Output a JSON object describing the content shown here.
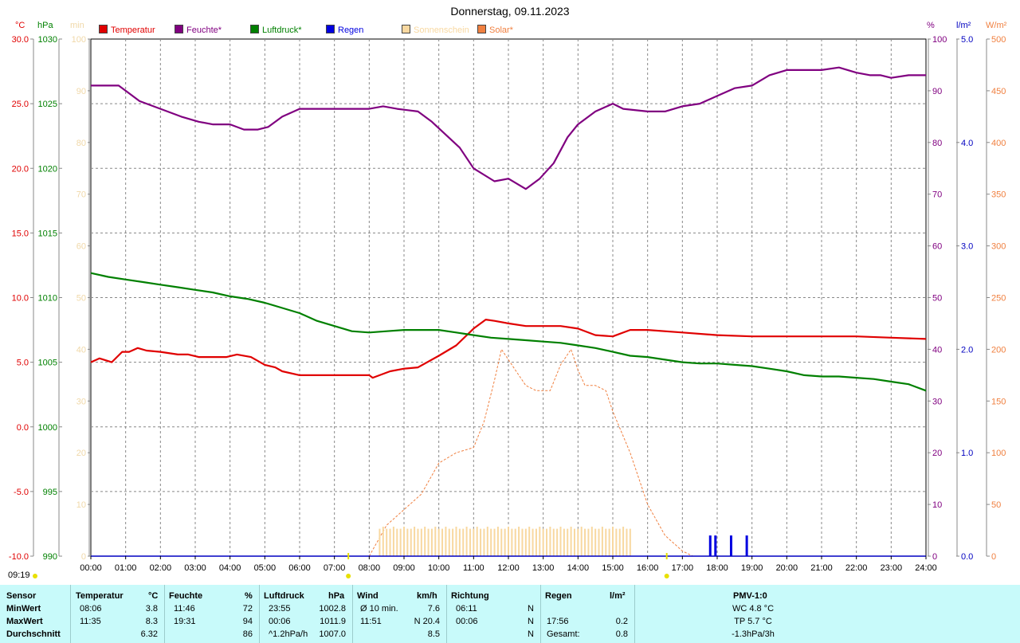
{
  "title": "Donnerstag, 09.11.2023",
  "time_stamp": "09:19",
  "axis_units": {
    "temp": "°C",
    "press": "hPa",
    "sun": "min",
    "hum": "%",
    "rain": "l/m²",
    "solar": "W/m²"
  },
  "legend": [
    {
      "label": "Temperatur",
      "color": "#e00000"
    },
    {
      "label": "Feuchte*",
      "color": "#800080"
    },
    {
      "label": "Luftdruck*",
      "color": "#008000"
    },
    {
      "label": "Regen",
      "color": "#0000e0"
    },
    {
      "label": "Sonnenschein",
      "color": "#f8d8a0"
    },
    {
      "label": "Solar*",
      "color": "#f08040"
    }
  ],
  "chart_data": {
    "type": "line",
    "title": "Donnerstag, 09.11.2023",
    "x_ticks": [
      "00:00",
      "01:00",
      "02:00",
      "03:00",
      "04:00",
      "05:00",
      "06:00",
      "07:00",
      "08:00",
      "09:00",
      "10:00",
      "11:00",
      "12:00",
      "13:00",
      "14:00",
      "15:00",
      "16:00",
      "17:00",
      "18:00",
      "19:00",
      "20:00",
      "21:00",
      "22:00",
      "23:00",
      "24:00"
    ],
    "xlim": [
      0,
      24
    ],
    "axes": {
      "temp": {
        "ylim": [
          -10,
          30
        ],
        "ticks": [
          "-10.0",
          "-5.0",
          "0.0",
          "5.0",
          "10.0",
          "15.0",
          "20.0",
          "25.0",
          "30.0"
        ],
        "color": "#e00000"
      },
      "press": {
        "ylim": [
          990,
          1030
        ],
        "ticks": [
          "990",
          "995",
          "1000",
          "1005",
          "1010",
          "1015",
          "1020",
          "1025",
          "1030"
        ],
        "color": "#008000"
      },
      "sun": {
        "ylim": [
          0,
          100
        ],
        "ticks": [
          "0",
          "10",
          "20",
          "30",
          "40",
          "50",
          "60",
          "70",
          "80",
          "90",
          "100"
        ],
        "color": "#f0d8a8"
      },
      "hum": {
        "ylim": [
          0,
          100
        ],
        "ticks": [
          "0",
          "10",
          "20",
          "30",
          "40",
          "50",
          "60",
          "70",
          "80",
          "90",
          "100"
        ],
        "color": "#800080"
      },
      "rain": {
        "ylim": [
          0,
          5
        ],
        "ticks": [
          "0.0",
          "1.0",
          "2.0",
          "3.0",
          "4.0",
          "5.0"
        ],
        "color": "#0000c0"
      },
      "solar": {
        "ylim": [
          0,
          500
        ],
        "ticks": [
          "0",
          "50",
          "100",
          "150",
          "200",
          "250",
          "300",
          "350",
          "400",
          "450",
          "500"
        ],
        "color": "#f08040"
      }
    },
    "grid": true,
    "series": [
      {
        "name": "Temperatur",
        "axis": "temp",
        "color": "#e00000",
        "x": [
          0,
          0.25,
          0.6,
          0.9,
          1.1,
          1.35,
          1.6,
          2.0,
          2.5,
          2.8,
          3.1,
          3.6,
          3.9,
          4.2,
          4.6,
          5.0,
          5.3,
          5.5,
          6.0,
          7.0,
          8.0,
          8.1,
          8.6,
          9.0,
          9.4,
          10.0,
          10.5,
          11.0,
          11.35,
          11.6,
          12.0,
          12.5,
          13.5,
          14.0,
          14.5,
          15.0,
          15.5,
          16.0,
          17.0,
          18.0,
          19.0,
          20.0,
          20.5,
          21.0,
          21.5,
          22.0,
          23.0,
          24.0
        ],
        "y": [
          5.0,
          5.3,
          5.0,
          5.8,
          5.8,
          6.1,
          5.9,
          5.8,
          5.6,
          5.6,
          5.4,
          5.4,
          5.4,
          5.6,
          5.4,
          4.8,
          4.6,
          4.3,
          4.0,
          4.0,
          4.0,
          3.8,
          4.3,
          4.5,
          4.6,
          5.5,
          6.3,
          7.6,
          8.3,
          8.2,
          8.0,
          7.8,
          7.8,
          7.6,
          7.1,
          7.0,
          7.5,
          7.5,
          7.3,
          7.1,
          7.0,
          7.0,
          7.0,
          7.0,
          7.0,
          7.0,
          6.9,
          6.8
        ]
      },
      {
        "name": "Feuchte*",
        "axis": "hum",
        "color": "#800080",
        "x": [
          0,
          0.8,
          1.0,
          1.4,
          1.8,
          2.2,
          2.6,
          3.1,
          3.5,
          4.0,
          4.4,
          4.8,
          5.1,
          5.5,
          6.0,
          7.0,
          8.0,
          8.4,
          8.8,
          9.4,
          9.8,
          10.2,
          10.6,
          11.0,
          11.6,
          12.0,
          12.5,
          12.9,
          13.3,
          13.7,
          14.0,
          14.5,
          15.0,
          15.3,
          16.0,
          16.5,
          17.0,
          17.5,
          18.0,
          18.5,
          19.0,
          19.5,
          20.0,
          21.0,
          21.5,
          22.0,
          22.4,
          22.7,
          23.0,
          23.5,
          24.0
        ],
        "y": [
          91,
          91,
          90,
          88,
          87,
          86,
          85,
          84,
          83.5,
          83.5,
          82.5,
          82.5,
          83,
          85,
          86.5,
          86.5,
          86.5,
          87,
          86.5,
          86,
          84,
          81.5,
          79,
          75,
          72.5,
          73,
          71,
          73,
          76,
          81,
          83.5,
          86,
          87.5,
          86.5,
          86,
          86,
          87,
          87.5,
          89,
          90.5,
          91,
          93,
          94,
          94,
          94.5,
          93.5,
          93,
          93,
          92.5,
          93,
          93
        ]
      },
      {
        "name": "Luftdruck*",
        "axis": "press",
        "color": "#008000",
        "x": [
          0,
          0.5,
          1.0,
          1.5,
          2.0,
          2.5,
          3.0,
          3.5,
          4.0,
          4.5,
          5.0,
          5.5,
          6.0,
          6.5,
          7.0,
          7.5,
          8.0,
          8.5,
          9.0,
          9.5,
          10.0,
          10.5,
          11.0,
          11.5,
          12.0,
          12.5,
          13.0,
          13.5,
          14.0,
          14.5,
          15.0,
          15.5,
          16.0,
          16.5,
          17.0,
          17.5,
          18.0,
          18.5,
          19.0,
          19.5,
          20.0,
          20.5,
          21.0,
          21.5,
          22.0,
          22.5,
          23.0,
          23.5,
          24.0
        ],
        "y": [
          1011.9,
          1011.6,
          1011.4,
          1011.2,
          1011.0,
          1010.8,
          1010.6,
          1010.4,
          1010.1,
          1009.9,
          1009.6,
          1009.2,
          1008.8,
          1008.2,
          1007.8,
          1007.4,
          1007.3,
          1007.4,
          1007.5,
          1007.5,
          1007.5,
          1007.3,
          1007.1,
          1006.9,
          1006.8,
          1006.7,
          1006.6,
          1006.5,
          1006.3,
          1006.1,
          1005.8,
          1005.5,
          1005.4,
          1005.2,
          1005.0,
          1004.9,
          1004.9,
          1004.8,
          1004.7,
          1004.5,
          1004.3,
          1004.0,
          1003.9,
          1003.9,
          1003.8,
          1003.7,
          1003.5,
          1003.3,
          1002.8
        ]
      },
      {
        "name": "Solar*",
        "axis": "solar",
        "color": "#f08040",
        "dashed": true,
        "x": [
          8.0,
          8.5,
          9.0,
          9.5,
          10.0,
          10.5,
          11.0,
          11.3,
          11.6,
          11.8,
          12.0,
          12.2,
          12.5,
          12.8,
          13.2,
          13.5,
          13.8,
          14.0,
          14.2,
          14.5,
          14.8,
          15.0,
          15.5,
          16.0,
          16.5,
          17.0,
          17.3
        ],
        "y": [
          0,
          30,
          45,
          60,
          90,
          100,
          105,
          130,
          170,
          200,
          190,
          180,
          165,
          160,
          160,
          185,
          200,
          180,
          165,
          165,
          160,
          140,
          100,
          50,
          20,
          5,
          0
        ]
      },
      {
        "name": "Sonnenschein",
        "axis": "sun",
        "color": "#f8d8a0",
        "type": "bar",
        "x_start": 8.3,
        "x_end": 15.5,
        "value": 5.3
      },
      {
        "name": "Regen",
        "axis": "rain",
        "color": "#0000e0",
        "type": "bar",
        "x": [
          17.8,
          17.95,
          18.4,
          18.85
        ],
        "values": [
          0.2,
          0.2,
          0.2,
          0.2
        ]
      }
    ]
  },
  "table": {
    "headers": {
      "sensor": "Sensor",
      "temp": "Temperatur",
      "temp_unit": "°C",
      "hum": "Feuchte",
      "hum_unit": "%",
      "press": "Luftdruck",
      "press_unit": "hPa",
      "wind": "Wind",
      "wind_unit": "km/h",
      "dir": "Richtung",
      "rain": "Regen",
      "rain_unit": "l/m²",
      "pmv": "PMV-1:0"
    },
    "rows": [
      {
        "label": "MinWert",
        "temp_time": "08:06",
        "temp_val": "3.8",
        "hum_time": "11:46",
        "hum_val": "72",
        "press_time": "23:55",
        "press_val": "1002.8",
        "wind_label": "Ø 10 min.",
        "wind_val": "7.6",
        "dir_time": "06:11",
        "dir_val": "N",
        "rain_time": "",
        "rain_val": "",
        "pmv": "WC 4.8 °C"
      },
      {
        "label": "MaxWert",
        "temp_time": "11:35",
        "temp_val": "8.3",
        "hum_time": "19:31",
        "hum_val": "94",
        "press_time": "00:06",
        "press_val": "1011.9",
        "wind_label": "11:51",
        "wind_val": "N 20.4",
        "dir_time": "00:06",
        "dir_val": "N",
        "rain_time": "17:56",
        "rain_val": "0.2",
        "pmv": "TP 5.7 °C"
      },
      {
        "label": "Durchschnitt",
        "temp_time": "",
        "temp_val": "6.32",
        "hum_time": "",
        "hum_val": "86",
        "press_time": "^1.2hPa/h",
        "press_val": "1007.0",
        "wind_label": "",
        "wind_val": "8.5",
        "dir_time": "",
        "dir_val": "N",
        "rain_time": "Gesamt:",
        "rain_val": "0.8",
        "pmv": "-1.3hPa/3h"
      }
    ]
  }
}
